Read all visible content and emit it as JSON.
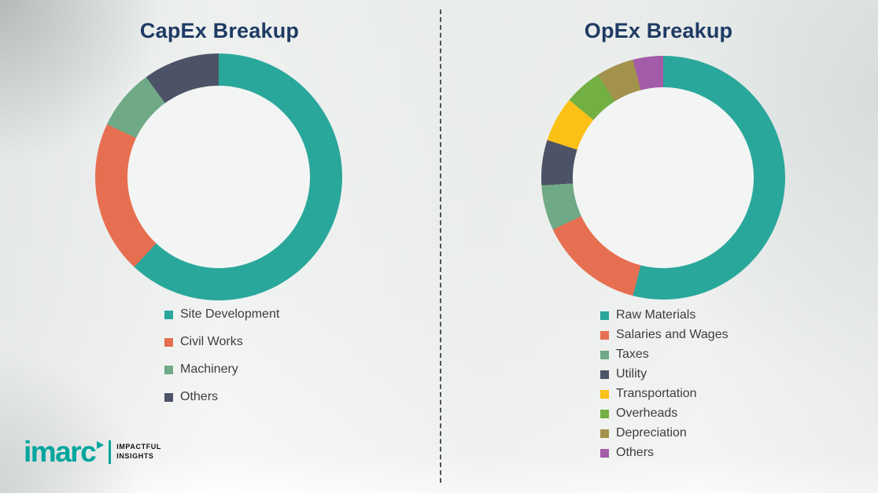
{
  "page": {
    "background_color": "#eff1f0",
    "divider_style": "vertical-dashed"
  },
  "chart_data": [
    {
      "type": "pie",
      "donut": true,
      "title": "CapEx Breakup",
      "title_color": "#1f3b63",
      "labels": [
        "Site Development",
        "Civil Works",
        "Machinery",
        "Others"
      ],
      "values": [
        62,
        20,
        8,
        10
      ],
      "values_unit": "percent-estimated",
      "colors": [
        "#2aa79b",
        "#e76f51",
        "#6fa985",
        "#4d5366"
      ],
      "legend_position": "bottom"
    },
    {
      "type": "pie",
      "donut": true,
      "title": "OpEx Breakup",
      "title_color": "#1f3b63",
      "labels": [
        "Raw Materials",
        "Salaries and Wages",
        "Taxes",
        "Utility",
        "Transportation",
        "Overheads",
        "Depreciation",
        "Others"
      ],
      "values": [
        54,
        14,
        6,
        6,
        6,
        5,
        5,
        4
      ],
      "values_unit": "percent-estimated",
      "colors": [
        "#2aa79b",
        "#e76f51",
        "#6fa985",
        "#4d5366",
        "#fcc117",
        "#72b043",
        "#a3924c",
        "#a35ca8"
      ],
      "legend_position": "bottom"
    }
  ],
  "logo": {
    "brand": "imarc",
    "tagline": [
      "IMPACTFUL",
      "INSIGHTS"
    ],
    "color": "#00a59d"
  }
}
